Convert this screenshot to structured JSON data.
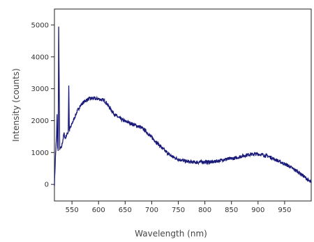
{
  "chart_data": {
    "type": "line",
    "xlabel": "Wavelength (nm)",
    "ylabel": "Intensity (counts)",
    "xlim": [
      517,
      1000
    ],
    "ylim": [
      -520,
      5500
    ],
    "x_ticks": [
      550,
      600,
      650,
      700,
      750,
      800,
      850,
      900,
      950
    ],
    "y_ticks": [
      0,
      1000,
      2000,
      3000,
      4000,
      5000
    ],
    "grid": false,
    "legend": "none",
    "line_color": "#1a1a7a",
    "series": [
      {
        "x": [
          517,
          519,
          521,
          522,
          523,
          524,
          525,
          527,
          530,
          533,
          535,
          537,
          540,
          543,
          544,
          545,
          546,
          548,
          550,
          555,
          560,
          565,
          570,
          575,
          580,
          585,
          590,
          595,
          600,
          605,
          610,
          615,
          620,
          625,
          630,
          635,
          640,
          645,
          650,
          655,
          660,
          665,
          670,
          675,
          680,
          685,
          690,
          695,
          700,
          705,
          710,
          715,
          720,
          725,
          730,
          735,
          740,
          745,
          750,
          755,
          760,
          765,
          770,
          775,
          780,
          785,
          790,
          795,
          800,
          805,
          810,
          815,
          820,
          825,
          830,
          835,
          840,
          845,
          850,
          855,
          860,
          865,
          870,
          875,
          880,
          885,
          890,
          895,
          900,
          905,
          910,
          915,
          920,
          925,
          930,
          935,
          940,
          945,
          950,
          955,
          960,
          965,
          970,
          975,
          980,
          985,
          990,
          995,
          1000
        ],
        "y": [
          0,
          900,
          1500,
          2200,
          1200,
          1050,
          4950,
          1100,
          1150,
          1400,
          1600,
          1450,
          1550,
          1650,
          3100,
          1700,
          1750,
          1800,
          1900,
          2100,
          2300,
          2450,
          2550,
          2620,
          2670,
          2700,
          2700,
          2680,
          2680,
          2660,
          2640,
          2560,
          2430,
          2300,
          2200,
          2130,
          2070,
          2020,
          1980,
          1950,
          1920,
          1880,
          1850,
          1820,
          1780,
          1720,
          1650,
          1560,
          1470,
          1390,
          1300,
          1220,
          1130,
          1050,
          980,
          910,
          860,
          820,
          790,
          760,
          740,
          720,
          710,
          700,
          700,
          690,
          700,
          700,
          710,
          700,
          700,
          700,
          720,
          740,
          760,
          780,
          790,
          800,
          810,
          820,
          840,
          860,
          890,
          910,
          930,
          950,
          940,
          950,
          950,
          940,
          920,
          900,
          880,
          840,
          800,
          760,
          720,
          680,
          640,
          600,
          550,
          500,
          450,
          400,
          330,
          270,
          200,
          120,
          40
        ]
      }
    ]
  }
}
